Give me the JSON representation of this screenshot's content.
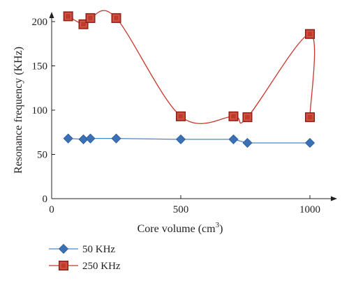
{
  "chart_data": {
    "type": "line",
    "xlabel": "Core volume (cm",
    "xlabel_sup": "3",
    "xlabel_suffix": ")",
    "ylabel": "Resonance frequency (KHz)",
    "xlim": [
      0,
      1100
    ],
    "ylim": [
      0,
      210
    ],
    "xticks": [
      0,
      500,
      1000
    ],
    "yticks": [
      0,
      50,
      100,
      150,
      200
    ],
    "grid": false,
    "legend_position": "bottom-left",
    "series": [
      {
        "name": "50 KHz",
        "color": "#3a70b6",
        "line_color": "#4a86c8",
        "marker": "diamond",
        "smooth": false,
        "x": [
          64,
          123,
          150,
          250,
          500,
          704,
          758,
          1000
        ],
        "y": [
          68,
          67,
          68,
          68,
          67,
          67,
          63,
          63
        ]
      },
      {
        "name": "250 KHz",
        "color": "#c0392b",
        "line_color": "#c8372d",
        "marker": "square",
        "smooth": true,
        "x": [
          64,
          123,
          150,
          250,
          500,
          704,
          758,
          1000,
          1000
        ],
        "y": [
          206,
          197,
          204,
          204,
          93,
          93,
          92,
          186,
          92
        ]
      }
    ]
  }
}
